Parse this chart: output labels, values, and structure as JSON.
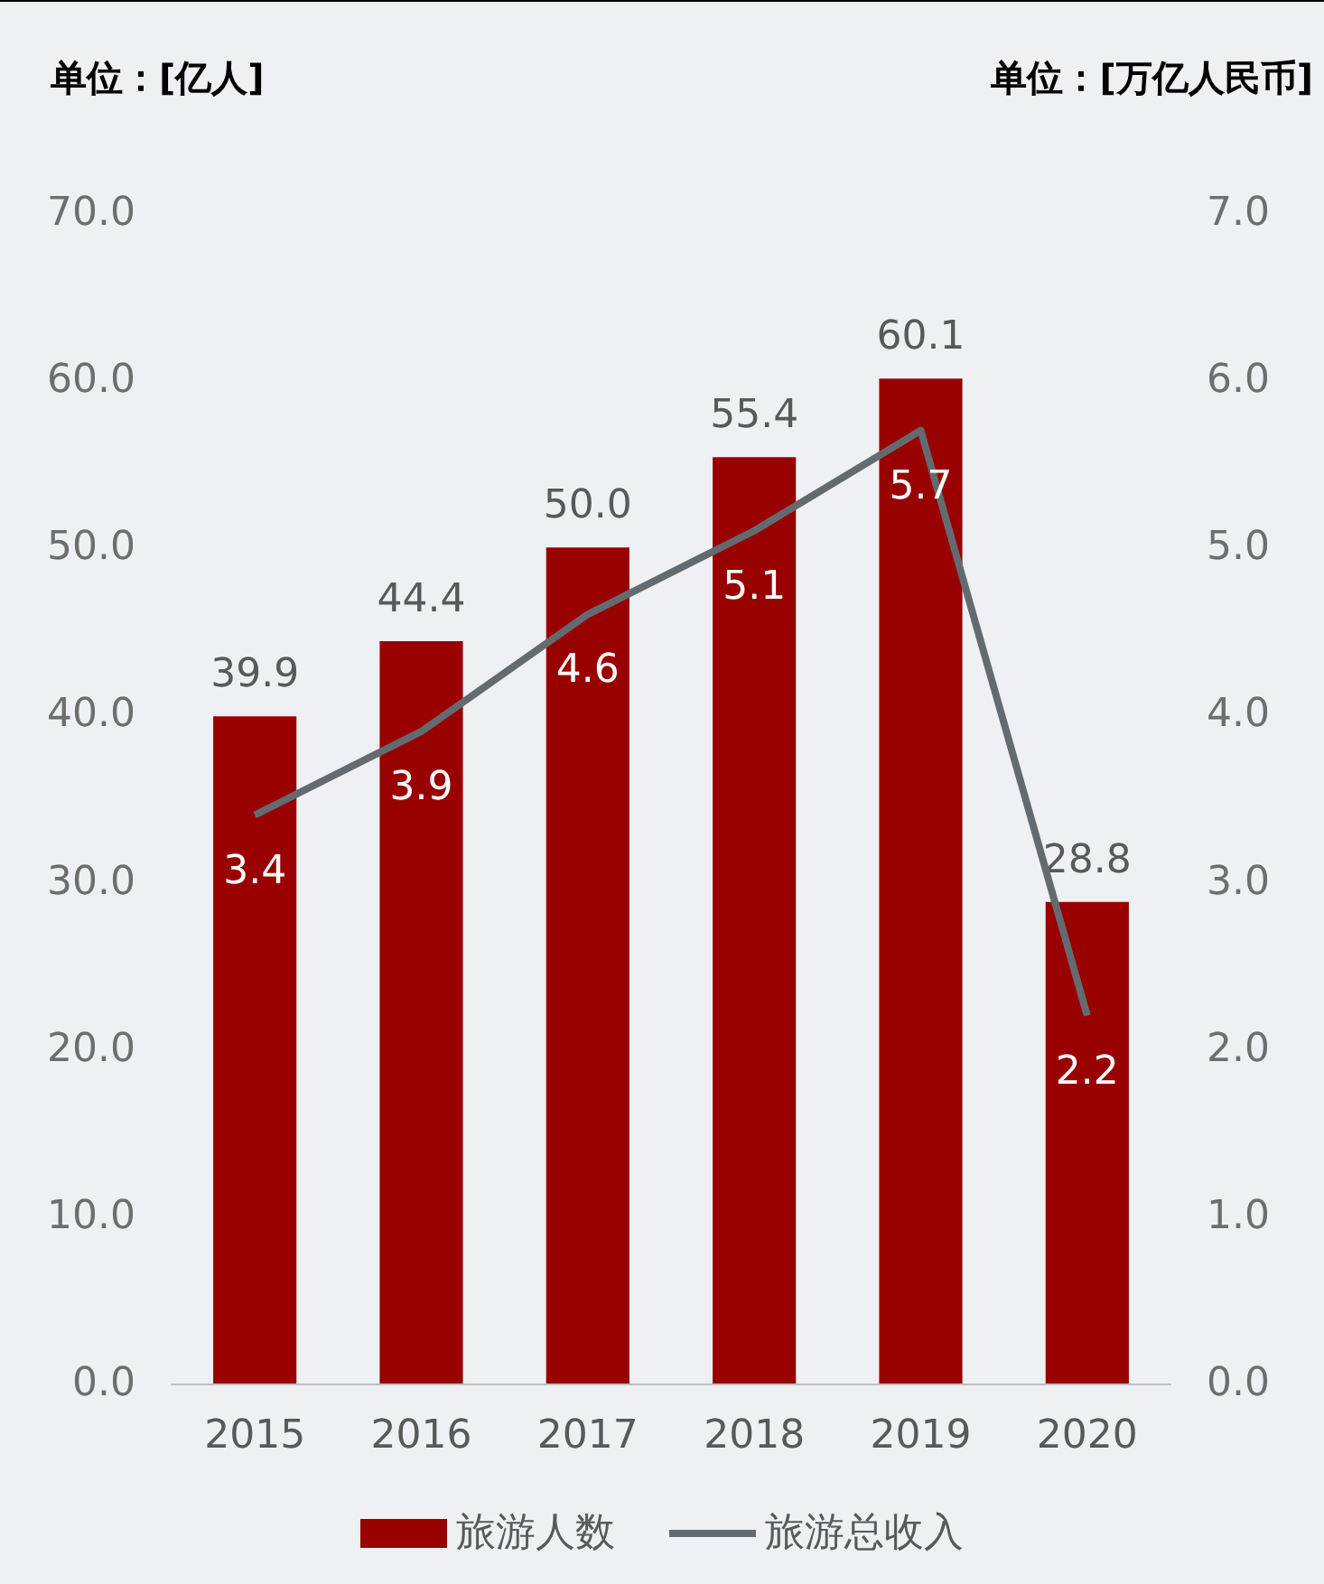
{
  "chart_data": {
    "type": "bar",
    "ylabel": "单位：[亿人]",
    "y2label": "单位：[万亿人民币]",
    "categories": [
      "2015",
      "2016",
      "2017",
      "2018",
      "2019",
      "2020"
    ],
    "series": [
      {
        "name": "旅游人数",
        "color": "#990000",
        "values": [
          39.9,
          44.4,
          50.0,
          55.4,
          60.1,
          28.8
        ],
        "value_labels": [
          "39.9",
          "44.4",
          "50.0",
          "55.4",
          "60.1",
          "28.8"
        ]
      },
      {
        "name": "旅游总收入",
        "type": "line",
        "axis": "y2",
        "color": "#646b70",
        "values": [
          3.4,
          3.9,
          4.6,
          5.1,
          5.7,
          2.2
        ],
        "value_labels": [
          "3.4",
          "3.9",
          "4.6",
          "5.1",
          "5.7",
          "2.2"
        ]
      }
    ],
    "ylim": [
      0,
      70
    ],
    "yticks": [
      {
        "value": 0,
        "label": "0.0"
      },
      {
        "value": 10,
        "label": "10.0"
      },
      {
        "value": 20,
        "label": "20.0"
      },
      {
        "value": 30,
        "label": "30.0"
      },
      {
        "value": 40,
        "label": "40.0"
      },
      {
        "value": 50,
        "label": "50.0"
      },
      {
        "value": 60,
        "label": "60.0"
      },
      {
        "value": 70,
        "label": "70.0"
      }
    ],
    "y2lim": [
      0,
      7
    ],
    "y2ticks": [
      {
        "value": 0,
        "label": "0.0"
      },
      {
        "value": 1,
        "label": "1.0"
      },
      {
        "value": 2,
        "label": "2.0"
      },
      {
        "value": 3,
        "label": "3.0"
      },
      {
        "value": 4,
        "label": "4.0"
      },
      {
        "value": 5,
        "label": "5.0"
      },
      {
        "value": 6,
        "label": "6.0"
      },
      {
        "value": 7,
        "label": "7.0"
      }
    ],
    "legend": "bottom",
    "grid": false,
    "marker": "none",
    "line_style": "solid"
  }
}
